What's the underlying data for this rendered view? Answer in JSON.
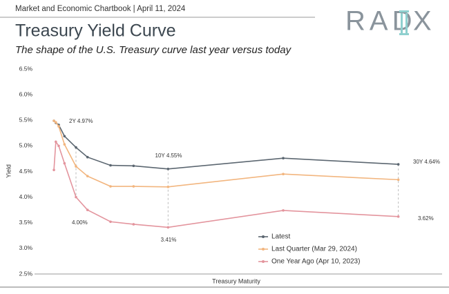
{
  "header": {
    "source": "Market and Economic Chartbook | April 11, 2024",
    "logo": [
      "RAD",
      "X"
    ]
  },
  "chart_data": {
    "type": "line",
    "title": "Treasury Yield Curve",
    "subtitle": "The shape of the U.S. Treasury curve last year versus today",
    "y_label": "Yield",
    "x_label": "Treasury Maturity",
    "x": [
      0.0833,
      0.25,
      0.5,
      1,
      2,
      3,
      5,
      7,
      10,
      20,
      30
    ],
    "xlim": [
      -1.6,
      33.8
    ],
    "ylim": [
      2.5,
      6.5
    ],
    "yticks": [
      {
        "value": 2.5,
        "label": "2.5%"
      },
      {
        "value": 3.0,
        "label": "3.0%"
      },
      {
        "value": 3.5,
        "label": "3.5%"
      },
      {
        "value": 4.0,
        "label": "4.0%"
      },
      {
        "value": 4.5,
        "label": "4.5%"
      },
      {
        "value": 5.0,
        "label": "5.0%"
      },
      {
        "value": 5.5,
        "label": "5.5%"
      },
      {
        "value": 6.0,
        "label": "6.0%"
      },
      {
        "value": 6.5,
        "label": "6.5%"
      }
    ],
    "grid": false,
    "series": [
      {
        "name": "Latest",
        "color": "#5b6670",
        "values": [
          5.49,
          5.45,
          5.41,
          5.19,
          4.97,
          4.78,
          4.62,
          4.61,
          4.55,
          4.76,
          4.64
        ]
      },
      {
        "name": "Last Quarter (Mar 29, 2024)",
        "color": "#f2b57e",
        "values": [
          5.49,
          5.46,
          5.38,
          5.03,
          4.6,
          4.41,
          4.21,
          4.21,
          4.2,
          4.45,
          4.34
        ]
      },
      {
        "name": "One Year Ago (Apr 10, 2023)",
        "color": "#e3949d",
        "values": [
          4.53,
          5.08,
          5.0,
          4.66,
          4.0,
          3.75,
          3.52,
          3.47,
          3.41,
          3.74,
          3.62
        ]
      }
    ],
    "annotations": [
      "2Y 4.97%",
      "10Y 4.55%",
      "30Y 4.64%",
      "4.00%",
      "3.41%",
      "3.62%"
    ]
  }
}
